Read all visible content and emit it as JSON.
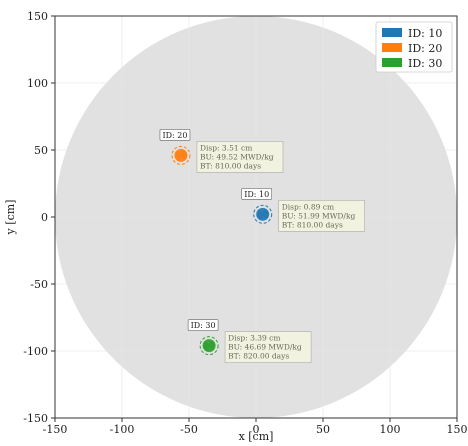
{
  "chart_data": {
    "type": "scatter",
    "title": "",
    "xlabel": "x [cm]",
    "ylabel": "y [cm]",
    "xlim": [
      -150,
      150
    ],
    "ylim": [
      -150,
      150
    ],
    "xticks": [
      -150,
      -100,
      -50,
      0,
      50,
      100,
      150
    ],
    "yticks": [
      -150,
      -100,
      -50,
      0,
      50,
      100,
      150
    ],
    "grid": true,
    "legend_position": "top-right",
    "background_circle_radius": 150,
    "background_color": "#dcdcdc",
    "series": [
      {
        "name": "ID: 10",
        "id_label": "ID: 10",
        "color": "#1f77b4",
        "center": [
          5,
          2
        ],
        "disp_text": "Disp: 0.89 cm",
        "bu_text": "BU: 51.99 MWD/kg",
        "bt_text": "BT: 810.00 days"
      },
      {
        "name": "ID: 20",
        "id_label": "ID: 20",
        "color": "#ff7f0e",
        "center": [
          -56,
          46
        ],
        "disp_text": "Disp: 3.51 cm",
        "bu_text": "BU: 49.52 MWD/kg",
        "bt_text": "BT: 810.00 days"
      },
      {
        "name": "ID: 30",
        "id_label": "ID: 30",
        "color": "#2ca02c",
        "center": [
          -35,
          -96
        ],
        "disp_text": "Disp: 3.39 cm",
        "bu_text": "BU: 46.69 MWD/kg",
        "bt_text": "BT: 820.00 days"
      }
    ]
  }
}
